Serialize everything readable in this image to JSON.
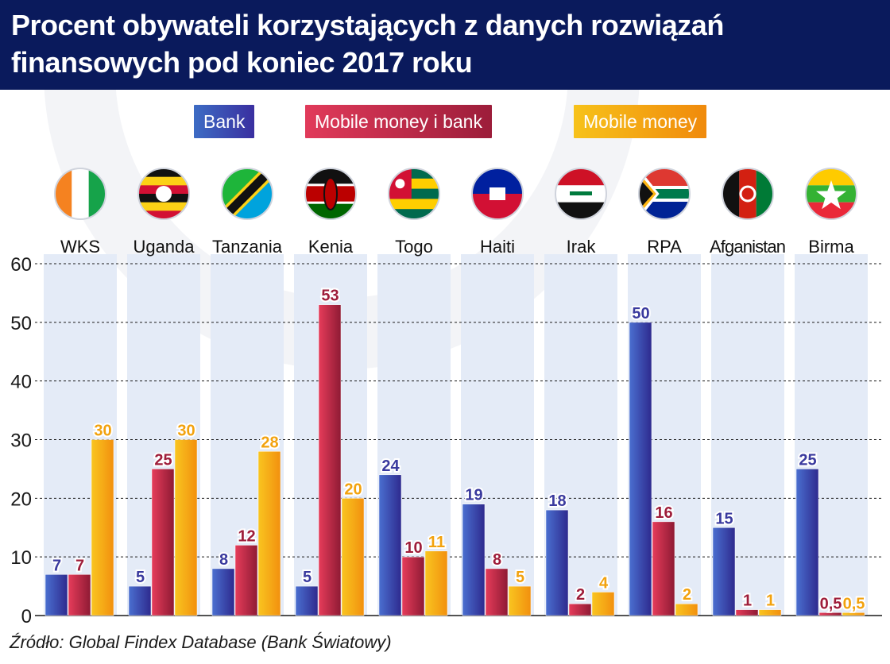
{
  "header": {
    "title": "Procent obywateli korzystających z danych rozwiązań\nfinansowych pod koniec 2017 roku"
  },
  "legend": {
    "bank": "Bank",
    "mobile_bank": "Mobile money i bank",
    "mobile": "Mobile money"
  },
  "source": "Źródło: Global Findex Database (Bank Światowy)",
  "colors": {
    "header_bg": "#0a1a5c",
    "bank": "#3a47b0",
    "mobile_bank": "#c22743",
    "mobile": "#f7b21a",
    "column_band": "#e4ebf7"
  },
  "chart_data": {
    "type": "bar",
    "title": "Procent obywateli korzystających z danych rozwiązań finansowych pod koniec 2017 roku",
    "categories": [
      "WKS",
      "Uganda",
      "Tanzania",
      "Kenia",
      "Togo",
      "Haiti",
      "Irak",
      "RPA",
      "Afganistan",
      "Birma"
    ],
    "flags": [
      "flag-cote-divoire-icon",
      "flag-uganda-icon",
      "flag-tanzania-icon",
      "flag-kenya-icon",
      "flag-togo-icon",
      "flag-haiti-icon",
      "flag-iraq-icon",
      "flag-south-africa-icon",
      "flag-afghanistan-icon",
      "flag-myanmar-icon"
    ],
    "series": [
      {
        "name": "Bank",
        "values": [
          7,
          5,
          8,
          5,
          24,
          19,
          18,
          50,
          15,
          25
        ],
        "labels": [
          "7",
          "5",
          "8",
          "5",
          "24",
          "19",
          "18",
          "50",
          "15",
          "25"
        ]
      },
      {
        "name": "Mobile money i bank",
        "values": [
          7,
          25,
          12,
          53,
          10,
          8,
          2,
          16,
          1,
          0.5
        ],
        "labels": [
          "7",
          "25",
          "12",
          "53",
          "10",
          "8",
          "2",
          "16",
          "1",
          "0,5"
        ]
      },
      {
        "name": "Mobile money",
        "values": [
          30,
          30,
          28,
          20,
          11,
          5,
          4,
          2,
          1,
          0.5
        ],
        "labels": [
          "30",
          "30",
          "28",
          "20",
          "11",
          "5",
          "4",
          "2",
          "1",
          "0,5"
        ]
      }
    ],
    "ylim": [
      0,
      60
    ],
    "yticks": [
      0,
      10,
      20,
      30,
      40,
      50,
      60
    ],
    "grid": true,
    "legend_position": "top"
  }
}
